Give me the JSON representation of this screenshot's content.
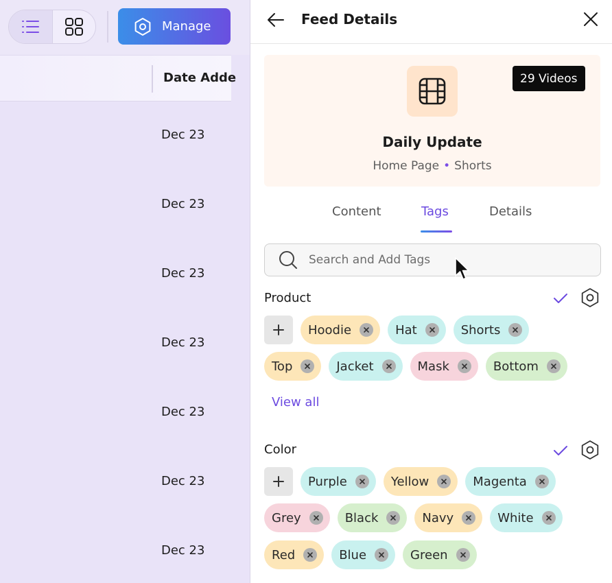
{
  "toolbar": {
    "manage_label": "Manage"
  },
  "table": {
    "column_header": "Date Adde",
    "rows": [
      "Dec 23",
      "Dec 23",
      "Dec 23",
      "Dec 23",
      "Dec 23",
      "Dec 23",
      "Dec 23"
    ]
  },
  "drawer": {
    "title": "Feed Details",
    "feed": {
      "name": "Daily Update",
      "video_count": "29 Videos",
      "meta_page": "Home Page",
      "meta_dot": "•",
      "meta_type": "Shorts"
    },
    "tabs": [
      {
        "label": "Content",
        "active": false
      },
      {
        "label": "Tags",
        "active": true
      },
      {
        "label": "Details",
        "active": false
      }
    ],
    "search": {
      "placeholder": "Search and Add Tags",
      "value": ""
    },
    "sections": [
      {
        "title": "Product",
        "add_label": "+",
        "tag_rows": [
          [
            {
              "label": "Hoodie",
              "color": "#fde6b8"
            },
            {
              "label": "Hat",
              "color": "#c9f1ef"
            },
            {
              "label": "Shorts",
              "color": "#c9f1ef"
            }
          ],
          [
            {
              "label": "Top",
              "color": "#fde6b8"
            },
            {
              "label": "Jacket",
              "color": "#c9f1ef"
            },
            {
              "label": "Mask",
              "color": "#f7d4dc"
            },
            {
              "label": "Bottom",
              "color": "#d6efcd"
            }
          ]
        ],
        "view_all": "View all"
      },
      {
        "title": "Color",
        "add_label": "+",
        "tag_rows": [
          [
            {
              "label": "Purple",
              "color": "#c9f1ef"
            },
            {
              "label": "Yellow",
              "color": "#fde6b8"
            },
            {
              "label": "Magenta",
              "color": "#c9f1ef"
            }
          ],
          [
            {
              "label": "Grey",
              "color": "#f7d4dc"
            },
            {
              "label": "Black",
              "color": "#d6efcd"
            },
            {
              "label": "Navy",
              "color": "#fde6b8"
            },
            {
              "label": "White",
              "color": "#c9f1ef"
            }
          ],
          [
            {
              "label": "Red",
              "color": "#fde6b8"
            },
            {
              "label": "Blue",
              "color": "#c9f1ef"
            },
            {
              "label": "Green",
              "color": "#d6efcd"
            }
          ]
        ]
      }
    ]
  },
  "colors": {
    "accent": "#6b4ae0",
    "manage_gradient_start": "#3b8ee8",
    "manage_gradient_end": "#6a4fe0",
    "chip_remove_bg": "#b0b0b0"
  }
}
